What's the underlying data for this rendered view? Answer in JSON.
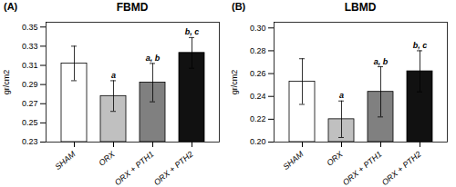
{
  "chart_data": [
    {
      "type": "bar",
      "label": "(A)",
      "title": "FBMD",
      "ylabel": "gr/cm2",
      "categories": [
        "SHAM",
        "ORX",
        "ORX + PTH1",
        "ORX + PTH2"
      ],
      "values": [
        0.312,
        0.278,
        0.292,
        0.323
      ],
      "errors": [
        0.018,
        0.016,
        0.02,
        0.016
      ],
      "colors": [
        "#FFFFFF",
        "#C0C0C0",
        "#808080",
        "#111111"
      ],
      "ylim": [
        0.23,
        0.355
      ],
      "yticks": [
        0.23,
        0.25,
        0.27,
        0.29,
        0.31,
        0.33,
        0.35
      ],
      "annotations": [
        {
          "category": "ORX",
          "text": "a"
        },
        {
          "category": "ORX + PTH1",
          "text": "a, b"
        },
        {
          "category": "ORX + PTH2",
          "text": "b, c"
        }
      ]
    },
    {
      "type": "bar",
      "label": "(B)",
      "title": "LBMD",
      "ylabel": "gr/cm2",
      "categories": [
        "SHAM",
        "ORX",
        "ORX + PTH1",
        "ORX + PTH2"
      ],
      "values": [
        0.253,
        0.22,
        0.244,
        0.262
      ],
      "errors": [
        0.02,
        0.016,
        0.022,
        0.018
      ],
      "colors": [
        "#FFFFFF",
        "#C0C0C0",
        "#808080",
        "#111111"
      ],
      "ylim": [
        0.2,
        0.305
      ],
      "yticks": [
        {
          "value": 0.2,
          "label": "0.20"
        },
        0.22,
        0.24,
        0.26,
        0.28,
        {
          "value": 0.3,
          "label": "0.30"
        }
      ],
      "annotations": [
        {
          "category": "ORX",
          "text": "a"
        },
        {
          "category": "ORX + PTH1",
          "text": "a, b"
        },
        {
          "category": "ORX + PTH2",
          "text": "b, c"
        }
      ]
    }
  ]
}
